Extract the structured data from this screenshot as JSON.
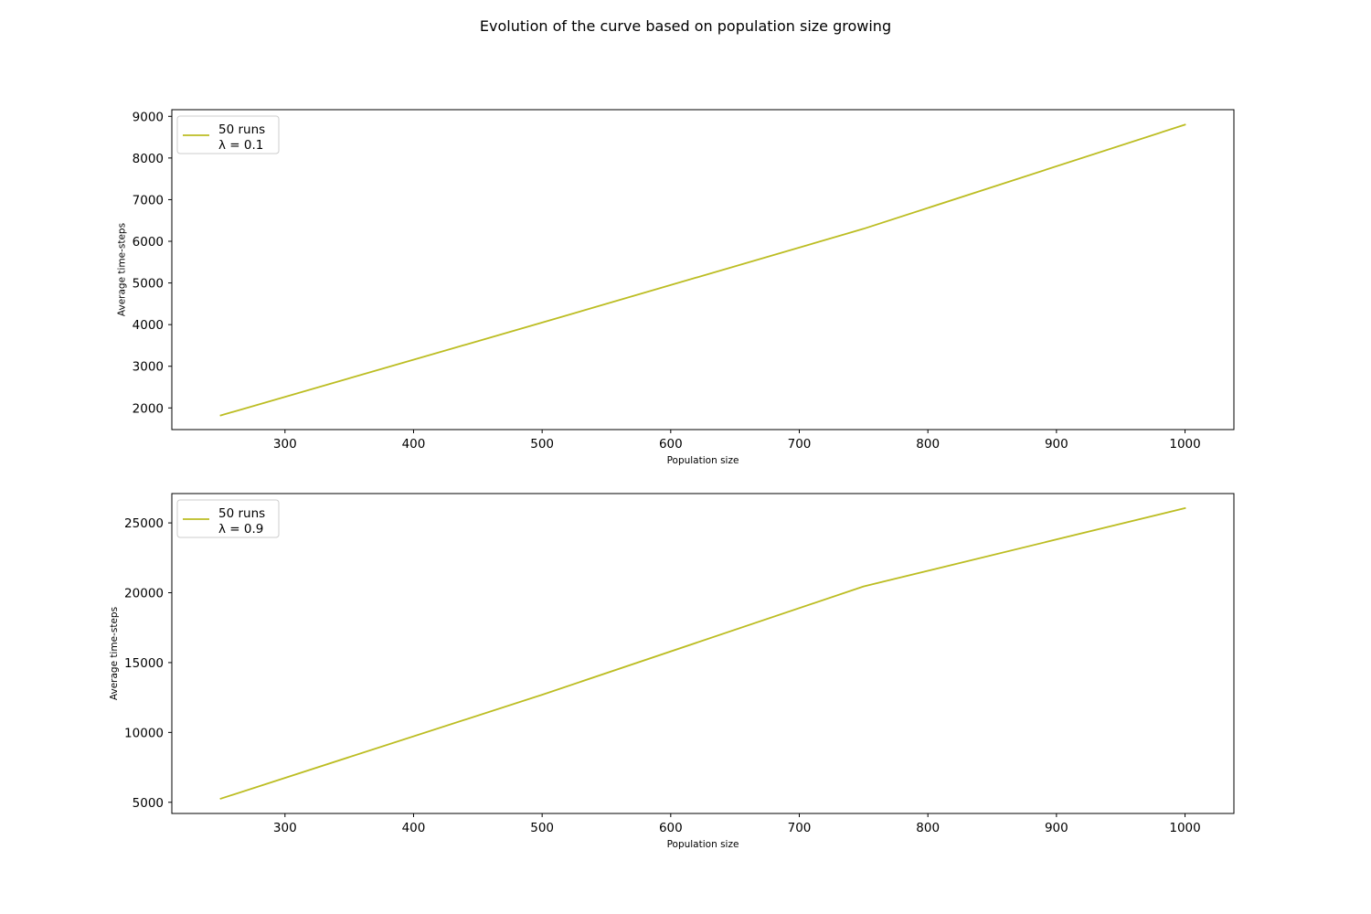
{
  "figure": {
    "suptitle": "Evolution of the curve based on population size growing"
  },
  "chart_data": [
    {
      "type": "line",
      "xlabel": "Population size",
      "ylabel": "Average time-steps",
      "xlim": [
        212,
        1038
      ],
      "ylim": [
        1480,
        9160
      ],
      "x_ticks": [
        300,
        400,
        500,
        600,
        700,
        800,
        900,
        1000
      ],
      "y_ticks": [
        2000,
        3000,
        4000,
        5000,
        6000,
        7000,
        8000,
        9000
      ],
      "grid": false,
      "legend_position": "upper left",
      "legend_lines": [
        "50 runs",
        "λ = 0.1"
      ],
      "series": [
        {
          "color": "#bcbd22",
          "x": [
            250,
            500,
            750,
            1000
          ],
          "y": [
            1820,
            4050,
            6300,
            8800
          ]
        }
      ]
    },
    {
      "type": "line",
      "xlabel": "Population size",
      "ylabel": "Average time-steps",
      "xlim": [
        212,
        1038
      ],
      "ylim": [
        4200,
        27100
      ],
      "x_ticks": [
        300,
        400,
        500,
        600,
        700,
        800,
        900,
        1000
      ],
      "y_ticks": [
        5000,
        10000,
        15000,
        20000,
        25000
      ],
      "grid": false,
      "legend_position": "upper left",
      "legend_lines": [
        "50 runs",
        "λ = 0.9"
      ],
      "series": [
        {
          "color": "#bcbd22",
          "x": [
            250,
            500,
            750,
            1000
          ],
          "y": [
            5260,
            12700,
            20450,
            26050
          ]
        }
      ]
    }
  ]
}
